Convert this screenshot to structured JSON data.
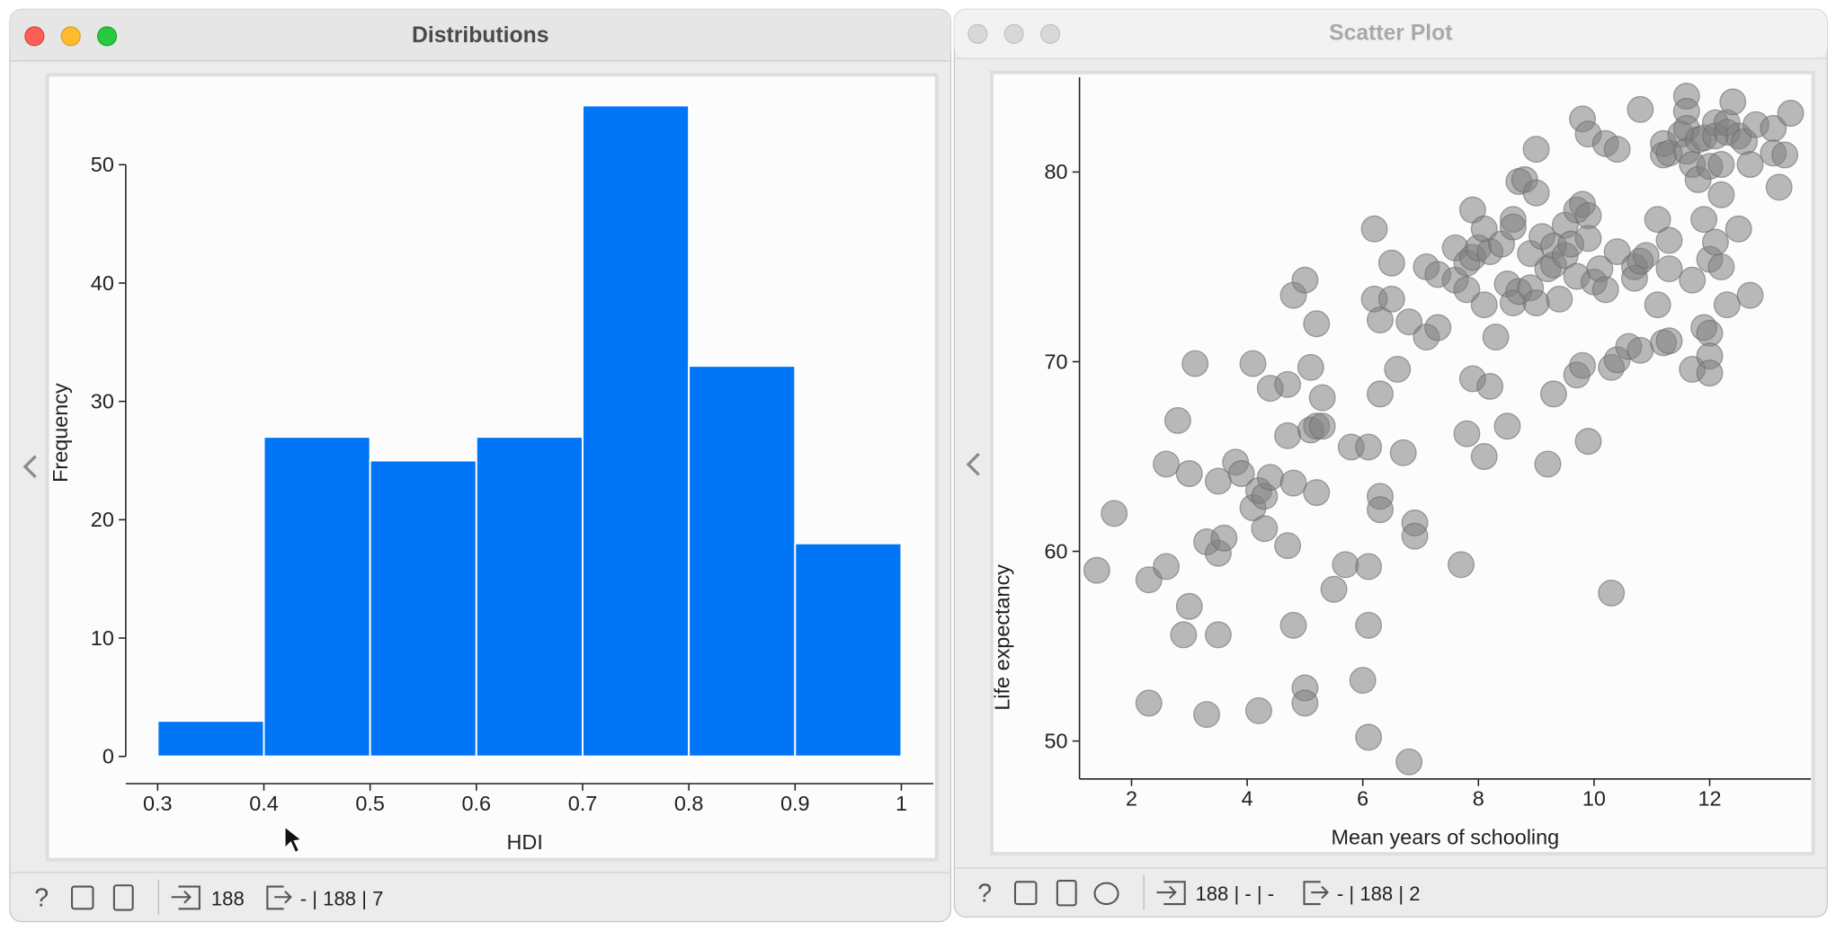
{
  "windows": [
    {
      "title": "Distributions",
      "status_in": "188",
      "status_out": "- | 188 | 7"
    },
    {
      "title": "Scatter Plot",
      "status_in": "188 | - | -",
      "status_out": "- | 188 | 2"
    }
  ],
  "chart_data": [
    {
      "type": "histogram",
      "xlabel": "HDI",
      "ylabel": "Frequency",
      "bins": [
        0.3,
        0.4,
        0.5,
        0.6,
        0.7,
        0.8,
        0.9,
        1
      ],
      "values": [
        3,
        27,
        25,
        27,
        55,
        33,
        18
      ],
      "color": "#0076f6",
      "xlim": [
        0.27,
        1.03
      ],
      "xticks": [
        0.3,
        0.4,
        0.5,
        0.6,
        0.7,
        0.8,
        0.9,
        1
      ],
      "ylim": [
        -2.3,
        57
      ],
      "yticks": [
        0,
        10,
        20,
        30,
        40,
        50
      ]
    },
    {
      "type": "scatter",
      "xlabel": "Mean years of schooling",
      "ylabel": "Life expectancy",
      "color": "#808080",
      "x": [
        1.4,
        1.7,
        2.3,
        2.3,
        2.6,
        2.6,
        2.8,
        2.9,
        3.0,
        3.0,
        3.1,
        3.3,
        3.3,
        3.5,
        3.5,
        3.5,
        3.6,
        3.8,
        3.9,
        4.1,
        4.1,
        4.2,
        4.2,
        4.3,
        4.3,
        4.4,
        4.4,
        4.7,
        4.7,
        4.7,
        4.8,
        4.8,
        4.8,
        5.0,
        5.0,
        5.0,
        5.1,
        5.1,
        5.2,
        5.2,
        5.2,
        5.3,
        5.3,
        5.5,
        5.7,
        5.8,
        6.0,
        6.1,
        6.1,
        6.1,
        6.1,
        6.2,
        6.2,
        6.3,
        6.3,
        6.3,
        6.3,
        6.5,
        6.5,
        6.6,
        6.7,
        6.8,
        6.8,
        6.9,
        6.9,
        7.1,
        7.1,
        7.3,
        7.3,
        7.6,
        7.6,
        7.7,
        7.8,
        7.8,
        7.8,
        7.9,
        7.9,
        7.9,
        8.0,
        8.1,
        8.1,
        8.1,
        8.2,
        8.2,
        8.3,
        8.4,
        8.5,
        8.5,
        8.6,
        8.6,
        8.6,
        8.7,
        8.7,
        8.8,
        8.9,
        8.9,
        9.0,
        9.0,
        9.0,
        9.1,
        9.2,
        9.2,
        9.3,
        9.3,
        9.3,
        9.4,
        9.5,
        9.5,
        9.6,
        9.7,
        9.7,
        9.7,
        9.8,
        9.8,
        9.8,
        9.9,
        9.9,
        9.9,
        9.9,
        10.0,
        10.1,
        10.2,
        10.2,
        10.3,
        10.3,
        10.4,
        10.4,
        10.4,
        10.6,
        10.7,
        10.7,
        10.8,
        10.8,
        10.8,
        10.9,
        11.1,
        11.1,
        11.2,
        11.2,
        11.2,
        11.3,
        11.3,
        11.3,
        11.3,
        11.5,
        11.6,
        11.6,
        11.6,
        11.6,
        11.7,
        11.7,
        11.7,
        11.8,
        11.8,
        11.9,
        11.9,
        11.9,
        12.0,
        12.0,
        12.0,
        12.0,
        12.0,
        12.1,
        12.1,
        12.1,
        12.2,
        12.2,
        12.2,
        12.3,
        12.3,
        12.3,
        12.4,
        12.5,
        12.5,
        12.6,
        12.7,
        12.7,
        12.8,
        13.1,
        13.1,
        13.2,
        13.3,
        13.4
      ],
      "values": [
        59.0,
        62.0,
        52.0,
        58.5,
        59.2,
        64.6,
        66.9,
        55.6,
        57.1,
        64.1,
        69.9,
        51.4,
        60.5,
        55.6,
        59.9,
        63.7,
        60.7,
        64.7,
        64.1,
        62.3,
        69.9,
        51.6,
        63.2,
        62.9,
        61.2,
        68.6,
        63.9,
        68.8,
        66.1,
        60.3,
        56.1,
        63.6,
        73.5,
        74.3,
        52.8,
        52.0,
        69.7,
        66.4,
        66.6,
        63.1,
        72.0,
        68.1,
        66.6,
        58.0,
        59.3,
        65.5,
        53.2,
        50.2,
        56.1,
        59.2,
        65.5,
        77.0,
        73.3,
        72.2,
        68.3,
        62.9,
        62.2,
        75.2,
        73.3,
        69.6,
        65.2,
        48.9,
        72.1,
        61.5,
        60.8,
        71.3,
        75.0,
        71.8,
        74.6,
        76.0,
        74.3,
        59.3,
        75.2,
        73.8,
        66.2,
        69.1,
        75.5,
        78.0,
        76.0,
        77.0,
        73.0,
        65.0,
        68.7,
        75.8,
        71.3,
        76.2,
        74.1,
        66.6,
        77.5,
        77.1,
        73.1,
        79.5,
        73.7,
        79.6,
        75.7,
        73.9,
        81.2,
        78.9,
        73.1,
        76.6,
        64.6,
        74.9,
        76.1,
        75.1,
        68.3,
        73.3,
        77.2,
        75.6,
        76.2,
        78.0,
        74.5,
        69.3,
        82.8,
        78.3,
        69.8,
        82.0,
        77.7,
        76.5,
        65.8,
        74.2,
        74.9,
        81.5,
        73.8,
        57.8,
        69.7,
        81.2,
        75.8,
        70.1,
        70.8,
        75.0,
        74.4,
        83.3,
        75.3,
        70.6,
        75.6,
        73.0,
        77.5,
        81.5,
        80.9,
        71.0,
        81.0,
        76.4,
        74.9,
        71.1,
        82.0,
        84.0,
        83.2,
        82.3,
        81.1,
        80.4,
        74.3,
        69.6,
        79.6,
        81.7,
        81.8,
        77.5,
        71.8,
        80.3,
        75.4,
        71.5,
        70.3,
        69.4,
        82.6,
        81.9,
        76.3,
        75.0,
        80.4,
        78.8,
        82.1,
        73.0,
        82.6,
        83.7,
        81.9,
        77.0,
        81.6,
        80.4,
        73.5,
        82.5,
        82.3,
        81.0,
        79.2,
        80.9,
        83.1
      ],
      "xlim": [
        1.1,
        13.75
      ],
      "xticks": [
        2,
        4,
        6,
        8,
        10,
        12
      ],
      "ylim": [
        48,
        85
      ],
      "yticks": [
        50,
        60,
        70,
        80
      ]
    }
  ]
}
